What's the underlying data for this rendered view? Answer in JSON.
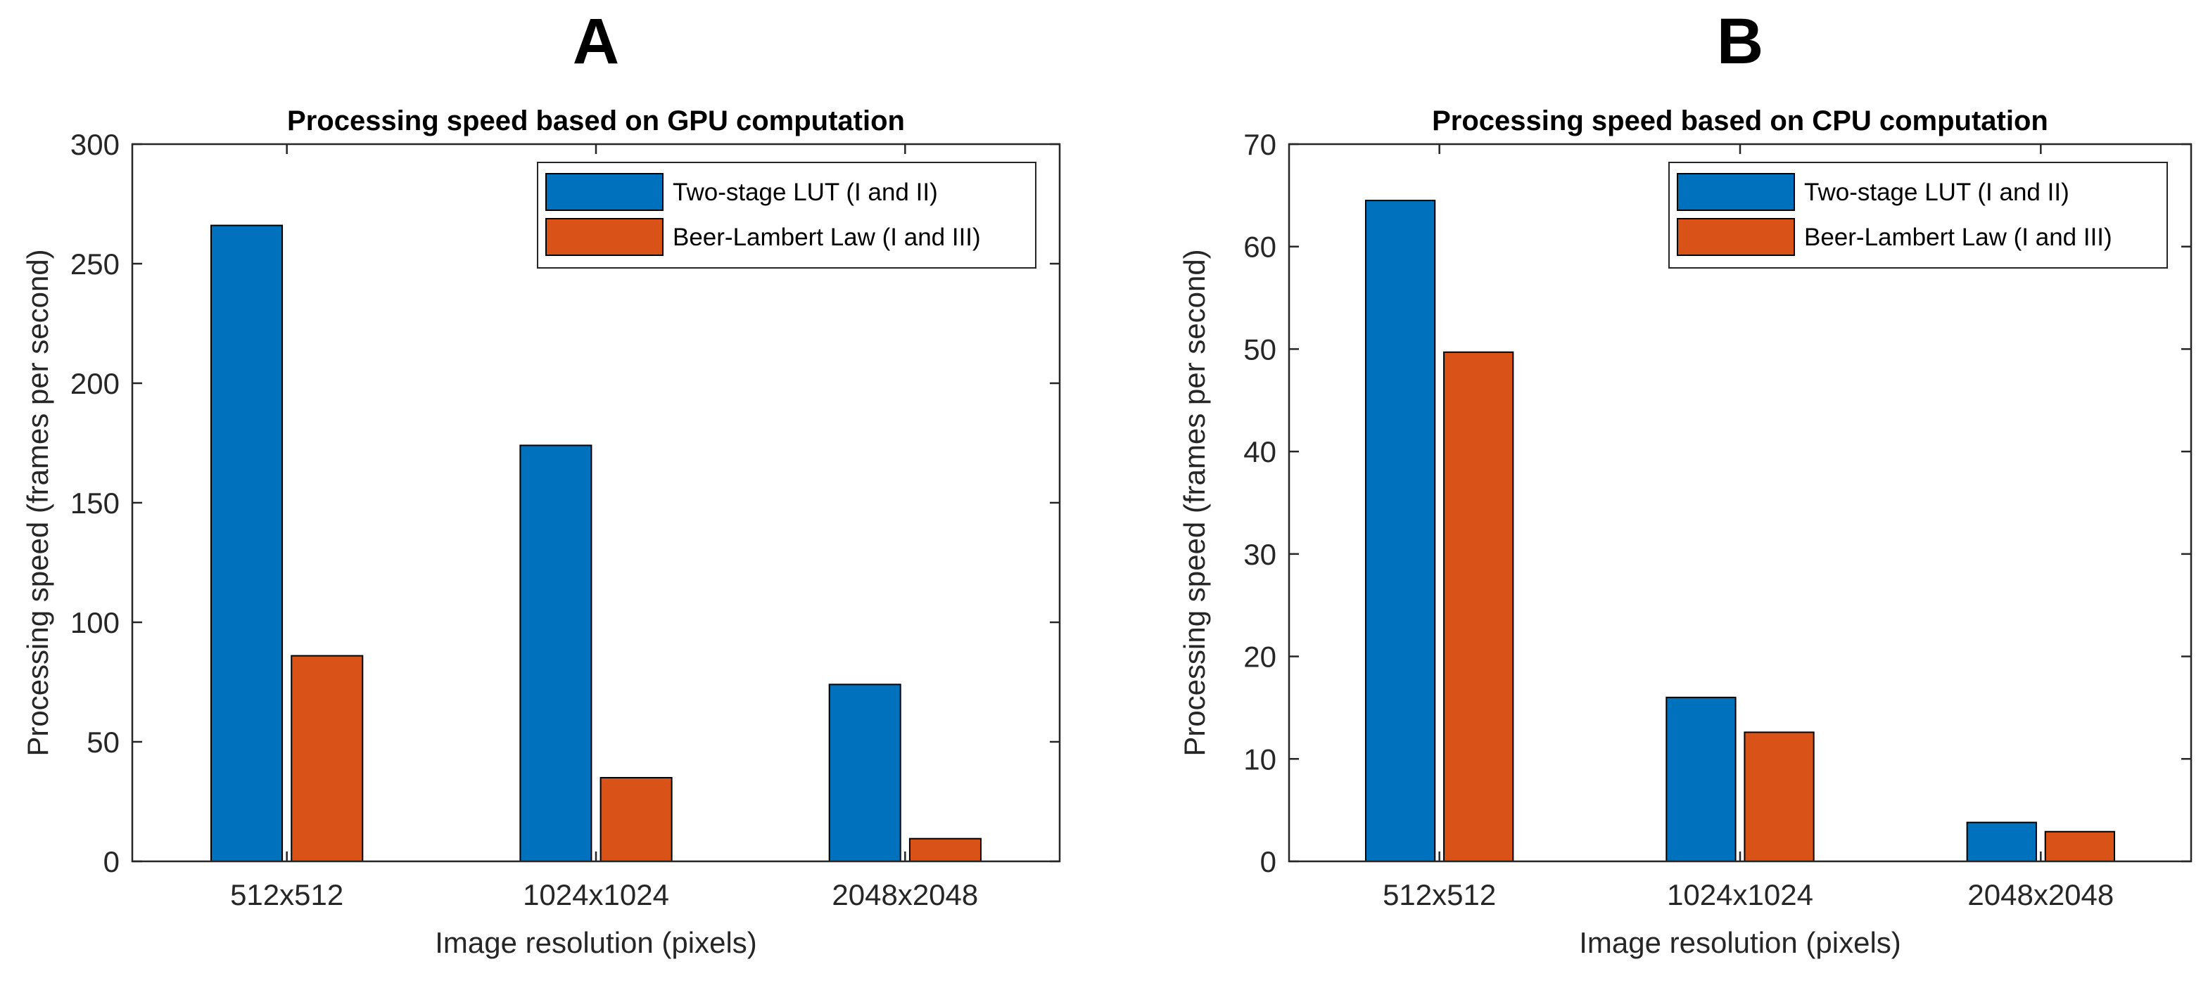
{
  "colors": {
    "series1": "#0072BD",
    "series2": "#D95319",
    "axis": "#262626",
    "edge": "#000000"
  },
  "chart_data": [
    {
      "panel": "A",
      "type": "bar",
      "title": "Processing speed based on GPU computation",
      "xlabel": "Image resolution (pixels)",
      "ylabel": "Processing speed (frames per second)",
      "categories": [
        "512x512",
        "1024x1024",
        "2048x2048"
      ],
      "ylim": [
        0,
        300
      ],
      "yticks": [
        0,
        50,
        100,
        150,
        200,
        250,
        300
      ],
      "legend_position": "top-right",
      "series": [
        {
          "name": "Two-stage LUT (I and II)",
          "values": [
            266,
            174,
            74
          ]
        },
        {
          "name": "Beer-Lambert Law (I and III)",
          "values": [
            86,
            35,
            9.5
          ]
        }
      ]
    },
    {
      "panel": "B",
      "type": "bar",
      "title": "Processing speed based on CPU computation",
      "xlabel": "Image resolution (pixels)",
      "ylabel": "Processing speed (frames per second)",
      "categories": [
        "512x512",
        "1024x1024",
        "2048x2048"
      ],
      "ylim": [
        0,
        70
      ],
      "yticks": [
        0,
        10,
        20,
        30,
        40,
        50,
        60,
        70
      ],
      "legend_position": "top-right",
      "series": [
        {
          "name": "Two-stage LUT (I and II)",
          "values": [
            64.5,
            16,
            3.8
          ]
        },
        {
          "name": "Beer-Lambert Law (I and III)",
          "values": [
            49.7,
            12.6,
            2.9
          ]
        }
      ]
    }
  ]
}
